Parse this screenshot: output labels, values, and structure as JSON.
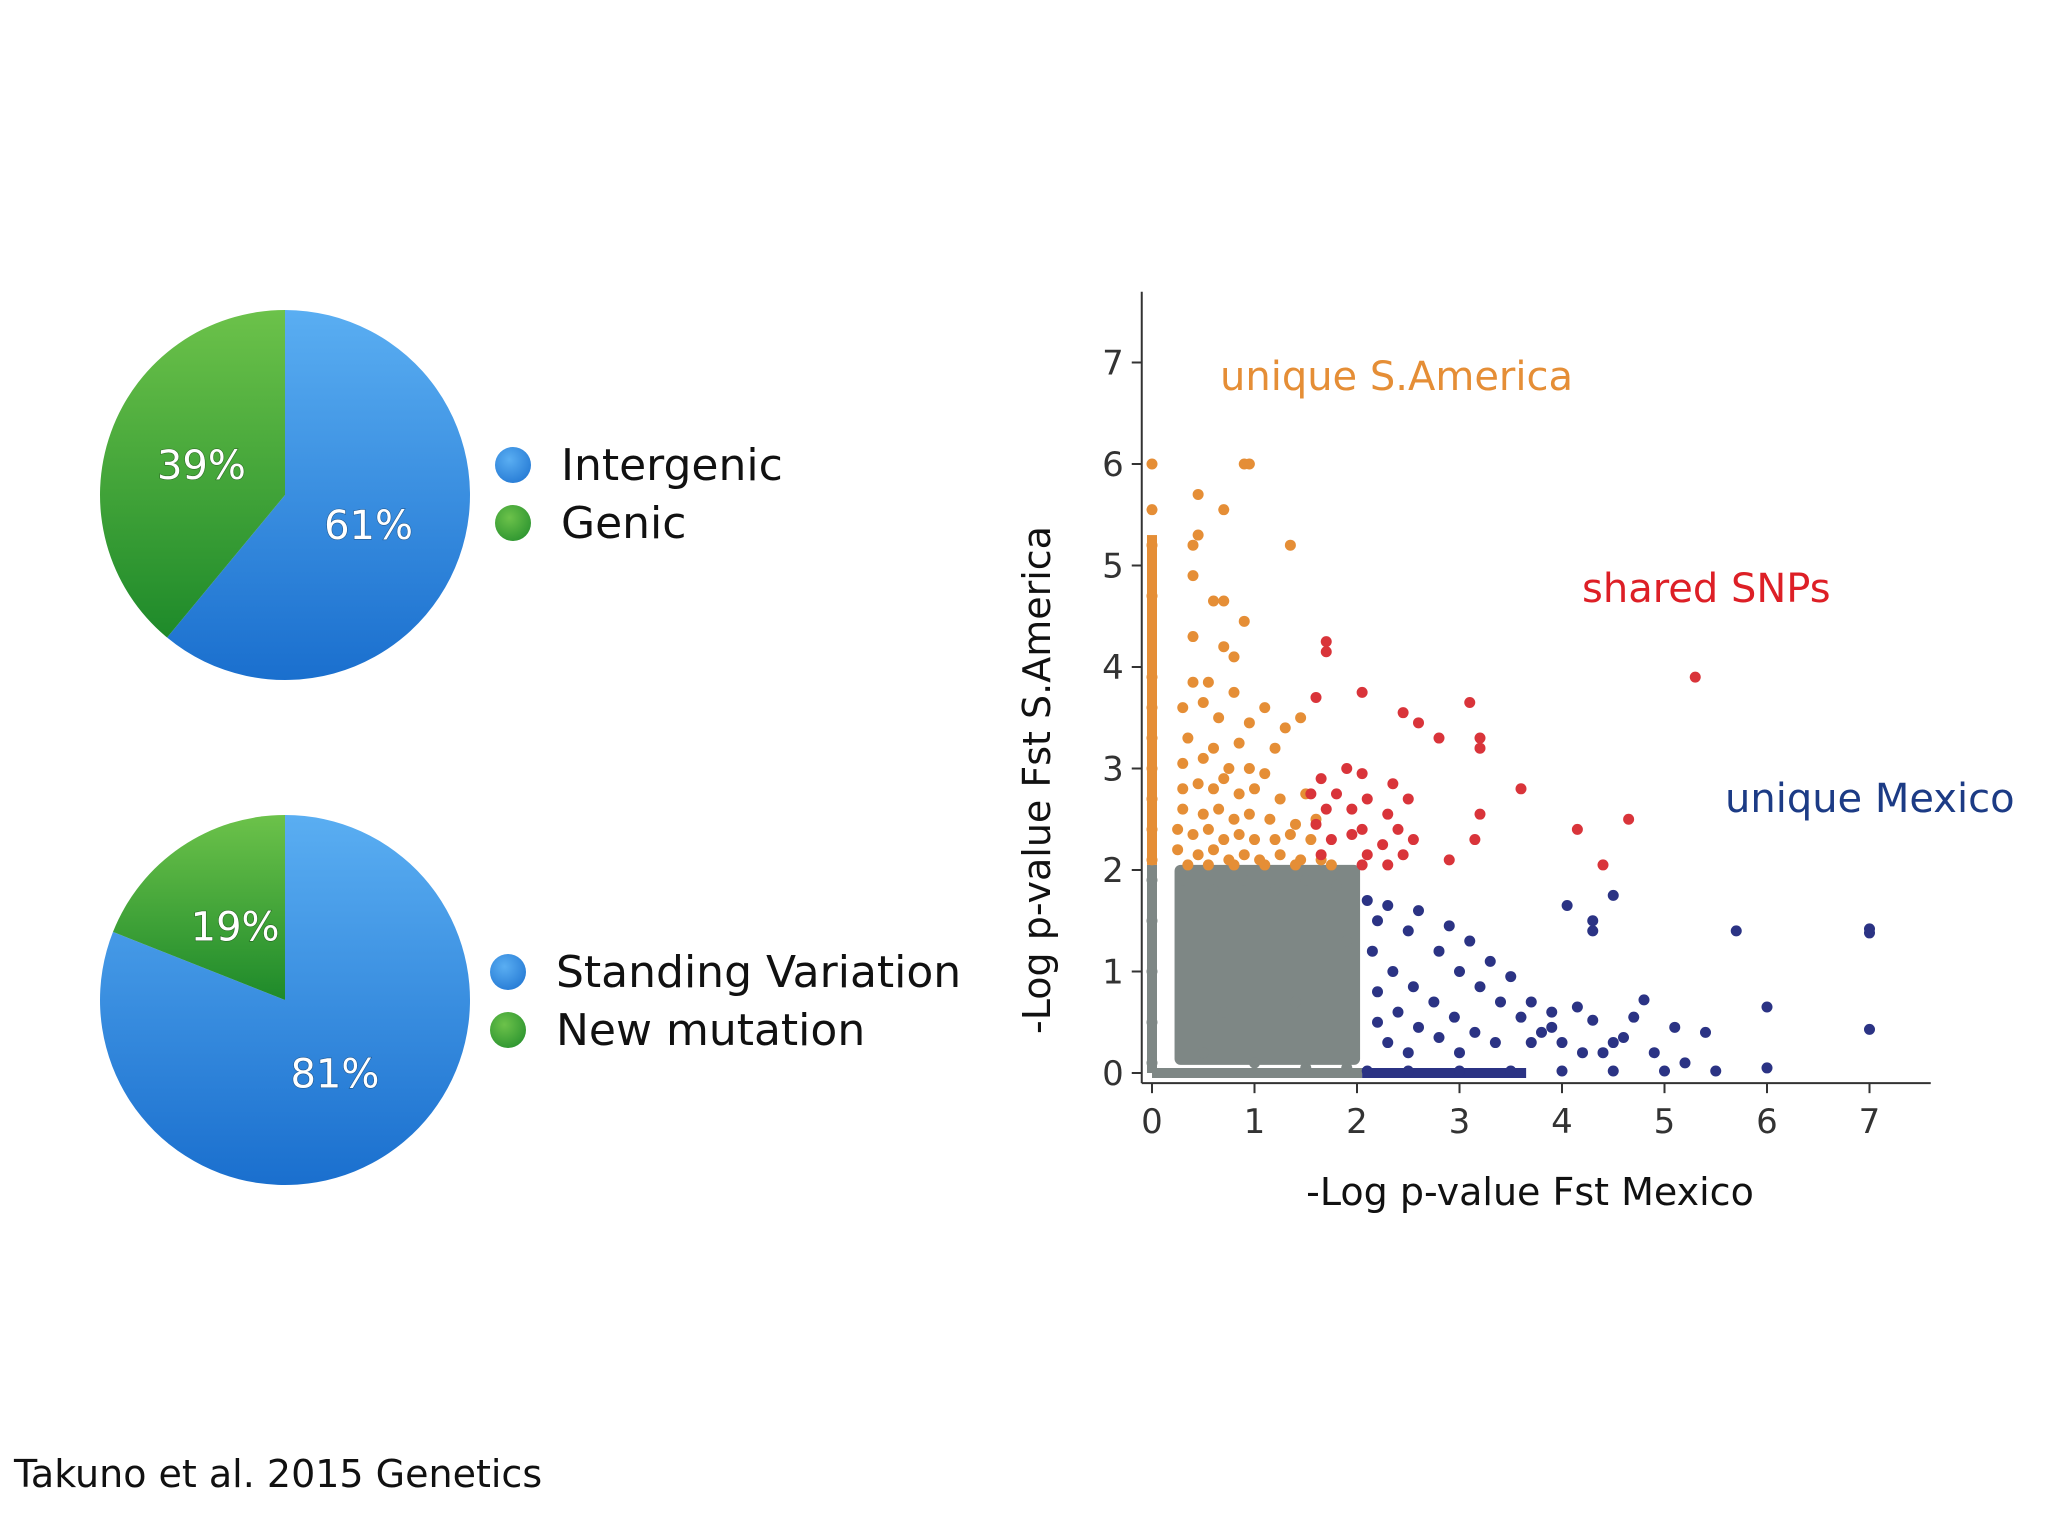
{
  "chart_data": [
    {
      "type": "pie",
      "labels": [
        "Intergenic",
        "Genic"
      ],
      "values": [
        61,
        39
      ],
      "value_labels": [
        "61%",
        "39%"
      ],
      "colors": [
        "#2f86dd",
        "#47a53a"
      ],
      "legend": [
        {
          "label": "Intergenic",
          "color": "#2f86dd"
        },
        {
          "label": "Genic",
          "color": "#47a53a"
        }
      ]
    },
    {
      "type": "pie",
      "labels": [
        "Standing Variation",
        "New mutation"
      ],
      "values": [
        81,
        19
      ],
      "value_labels": [
        "81%",
        "19%"
      ],
      "colors": [
        "#2f86dd",
        "#47a53a"
      ],
      "legend": [
        {
          "label": "Standing Variation",
          "color": "#2f86dd"
        },
        {
          "label": "New mutation",
          "color": "#47a53a"
        }
      ]
    },
    {
      "type": "scatter",
      "xlabel": "-Log p-value Fst Mexico",
      "ylabel": "-Log p-value Fst S.America",
      "xlim": [
        -0.1,
        7.5
      ],
      "ylim": [
        -0.1,
        7.5
      ],
      "xticks": [
        0,
        1,
        2,
        3,
        4,
        5,
        6,
        7
      ],
      "yticks": [
        0,
        1,
        2,
        3,
        4,
        5,
        6,
        7
      ],
      "grid": false,
      "groups": [
        {
          "name": "unique S.America",
          "color": "#e58e36",
          "points": [
            [
              0,
              6.0
            ],
            [
              0.9,
              6.0
            ],
            [
              0.95,
              6.0
            ],
            [
              0.45,
              5.7
            ],
            [
              0.7,
              5.55
            ],
            [
              0,
              5.55
            ],
            [
              0.45,
              5.3
            ],
            [
              0.4,
              5.2
            ],
            [
              1.35,
              5.2
            ],
            [
              0,
              5.2
            ],
            [
              0.4,
              4.9
            ],
            [
              0.6,
              4.65
            ],
            [
              0.7,
              4.65
            ],
            [
              0.9,
              4.45
            ],
            [
              0,
              4.7
            ],
            [
              0.4,
              4.3
            ],
            [
              0.7,
              4.2
            ],
            [
              0.8,
              4.1
            ],
            [
              0.4,
              3.85
            ],
            [
              0.55,
              3.85
            ],
            [
              0.8,
              3.75
            ],
            [
              0.3,
              3.6
            ],
            [
              0.5,
              3.65
            ],
            [
              1.1,
              3.6
            ],
            [
              0.65,
              3.5
            ],
            [
              0.95,
              3.45
            ],
            [
              1.3,
              3.4
            ],
            [
              1.45,
              3.5
            ],
            [
              0.35,
              3.3
            ],
            [
              0.6,
              3.2
            ],
            [
              0.85,
              3.25
            ],
            [
              1.2,
              3.2
            ],
            [
              0.3,
              3.05
            ],
            [
              0.5,
              3.1
            ],
            [
              0.75,
              3.0
            ],
            [
              0.95,
              3.0
            ],
            [
              1.1,
              2.95
            ],
            [
              0.3,
              2.8
            ],
            [
              0.45,
              2.85
            ],
            [
              0.6,
              2.8
            ],
            [
              0.7,
              2.9
            ],
            [
              0.85,
              2.75
            ],
            [
              1.0,
              2.8
            ],
            [
              1.25,
              2.7
            ],
            [
              1.5,
              2.75
            ],
            [
              0.3,
              2.6
            ],
            [
              0.5,
              2.55
            ],
            [
              0.65,
              2.6
            ],
            [
              0.8,
              2.5
            ],
            [
              0.95,
              2.55
            ],
            [
              1.15,
              2.5
            ],
            [
              1.4,
              2.45
            ],
            [
              1.6,
              2.5
            ],
            [
              0.25,
              2.4
            ],
            [
              0.4,
              2.35
            ],
            [
              0.55,
              2.4
            ],
            [
              0.7,
              2.3
            ],
            [
              0.85,
              2.35
            ],
            [
              1.0,
              2.3
            ],
            [
              1.2,
              2.3
            ],
            [
              1.35,
              2.35
            ],
            [
              1.55,
              2.3
            ],
            [
              0.25,
              2.2
            ],
            [
              0.45,
              2.15
            ],
            [
              0.6,
              2.2
            ],
            [
              0.75,
              2.1
            ],
            [
              0.9,
              2.15
            ],
            [
              1.05,
              2.1
            ],
            [
              1.25,
              2.15
            ],
            [
              1.45,
              2.1
            ],
            [
              1.65,
              2.1
            ],
            [
              0.35,
              2.05
            ],
            [
              0.55,
              2.05
            ],
            [
              0.8,
              2.05
            ],
            [
              1.1,
              2.05
            ],
            [
              1.4,
              2.05
            ],
            [
              1.75,
              2.05
            ],
            [
              0,
              3.9
            ],
            [
              0,
              3.6
            ],
            [
              0,
              3.3
            ],
            [
              0,
              3.0
            ],
            [
              0,
              2.7
            ],
            [
              0,
              2.4
            ],
            [
              0,
              2.1
            ]
          ]
        },
        {
          "name": "shared SNPs",
          "color": "#d9343a",
          "points": [
            [
              5.3,
              3.9
            ],
            [
              1.7,
              4.25
            ],
            [
              1.7,
              4.15
            ],
            [
              2.05,
              3.75
            ],
            [
              3.1,
              3.65
            ],
            [
              1.6,
              3.7
            ],
            [
              2.45,
              3.55
            ],
            [
              2.6,
              3.45
            ],
            [
              2.8,
              3.3
            ],
            [
              3.2,
              3.3
            ],
            [
              3.2,
              3.2
            ],
            [
              1.9,
              3.0
            ],
            [
              1.65,
              2.9
            ],
            [
              2.05,
              2.95
            ],
            [
              2.35,
              2.85
            ],
            [
              3.6,
              2.8
            ],
            [
              1.55,
              2.75
            ],
            [
              1.8,
              2.75
            ],
            [
              2.1,
              2.7
            ],
            [
              2.5,
              2.7
            ],
            [
              1.7,
              2.6
            ],
            [
              1.95,
              2.6
            ],
            [
              2.3,
              2.55
            ],
            [
              3.2,
              2.55
            ],
            [
              4.65,
              2.5
            ],
            [
              1.6,
              2.45
            ],
            [
              2.05,
              2.4
            ],
            [
              2.4,
              2.4
            ],
            [
              4.15,
              2.4
            ],
            [
              1.75,
              2.3
            ],
            [
              1.95,
              2.35
            ],
            [
              2.25,
              2.25
            ],
            [
              2.55,
              2.3
            ],
            [
              3.15,
              2.3
            ],
            [
              1.65,
              2.15
            ],
            [
              2.1,
              2.15
            ],
            [
              2.45,
              2.15
            ],
            [
              2.9,
              2.1
            ],
            [
              4.4,
              2.05
            ],
            [
              2.05,
              2.05
            ],
            [
              2.3,
              2.05
            ]
          ]
        },
        {
          "name": "unique Mexico",
          "color": "#2b3384",
          "points": [
            [
              7.0,
              1.42
            ],
            [
              7.0,
              1.38
            ],
            [
              5.7,
              1.4
            ],
            [
              4.3,
              1.5
            ],
            [
              4.3,
              1.4
            ],
            [
              4.5,
              1.75
            ],
            [
              4.05,
              1.65
            ],
            [
              6.0,
              0.65
            ],
            [
              7.0,
              0.43
            ],
            [
              5.4,
              0.4
            ],
            [
              5.1,
              0.45
            ],
            [
              4.8,
              0.72
            ],
            [
              4.7,
              0.55
            ],
            [
              4.5,
              0.3
            ],
            [
              4.3,
              0.52
            ],
            [
              4.15,
              0.65
            ],
            [
              3.9,
              0.6
            ],
            [
              3.7,
              0.7
            ],
            [
              3.5,
              0.95
            ],
            [
              3.3,
              1.1
            ],
            [
              3.1,
              1.3
            ],
            [
              2.9,
              1.45
            ],
            [
              2.6,
              1.6
            ],
            [
              2.3,
              1.65
            ],
            [
              2.1,
              1.7
            ],
            [
              2.2,
              1.5
            ],
            [
              2.5,
              1.4
            ],
            [
              2.8,
              1.2
            ],
            [
              3.0,
              1.0
            ],
            [
              3.2,
              0.85
            ],
            [
              3.4,
              0.7
            ],
            [
              3.6,
              0.55
            ],
            [
              3.8,
              0.4
            ],
            [
              4.0,
              0.3
            ],
            [
              4.2,
              0.2
            ],
            [
              2.15,
              1.2
            ],
            [
              2.35,
              1.0
            ],
            [
              2.55,
              0.85
            ],
            [
              2.75,
              0.7
            ],
            [
              2.95,
              0.55
            ],
            [
              3.15,
              0.4
            ],
            [
              3.35,
              0.3
            ],
            [
              2.2,
              0.8
            ],
            [
              2.4,
              0.6
            ],
            [
              2.6,
              0.45
            ],
            [
              2.8,
              0.35
            ],
            [
              3.0,
              0.2
            ],
            [
              2.3,
              0.3
            ],
            [
              2.5,
              0.2
            ],
            [
              2.2,
              0.5
            ],
            [
              3.7,
              0.3
            ],
            [
              3.9,
              0.45
            ],
            [
              4.4,
              0.2
            ],
            [
              4.6,
              0.35
            ],
            [
              4.9,
              0.2
            ],
            [
              5.2,
              0.1
            ],
            [
              6.0,
              0.05
            ],
            [
              5.5,
              0.02
            ],
            [
              5.0,
              0.02
            ],
            [
              4.5,
              0.02
            ],
            [
              4.0,
              0.02
            ],
            [
              3.5,
              0.02
            ],
            [
              3.0,
              0.02
            ],
            [
              2.5,
              0.02
            ],
            [
              2.1,
              0.02
            ]
          ]
        },
        {
          "name": "",
          "color": "#7e8785",
          "points": [
            [
              0,
              1.9
            ],
            [
              0,
              1.5
            ],
            [
              0,
              1.0
            ],
            [
              0,
              0.5
            ],
            [
              0,
              0.1
            ],
            [
              0.3,
              1.9
            ],
            [
              0.6,
              1.8
            ],
            [
              0.9,
              1.9
            ],
            [
              1.2,
              1.8
            ],
            [
              1.5,
              1.9
            ],
            [
              1.8,
              1.85
            ],
            [
              1.9,
              1.3
            ],
            [
              1.4,
              0.7
            ],
            [
              0.7,
              0.6
            ],
            [
              0.5,
              0.2
            ],
            [
              1.0,
              0.1
            ],
            [
              1.5,
              0.05
            ],
            [
              1.9,
              0.05
            ]
          ]
        }
      ],
      "annotations": [
        {
          "text": "unique S.America",
          "color": "#e58e36"
        },
        {
          "text": "shared SNPs",
          "color": "#dd1f26"
        },
        {
          "text": "unique Mexico",
          "color": "#1c3b85"
        }
      ]
    }
  ],
  "citation": "Takuno et al. 2015 Genetics"
}
